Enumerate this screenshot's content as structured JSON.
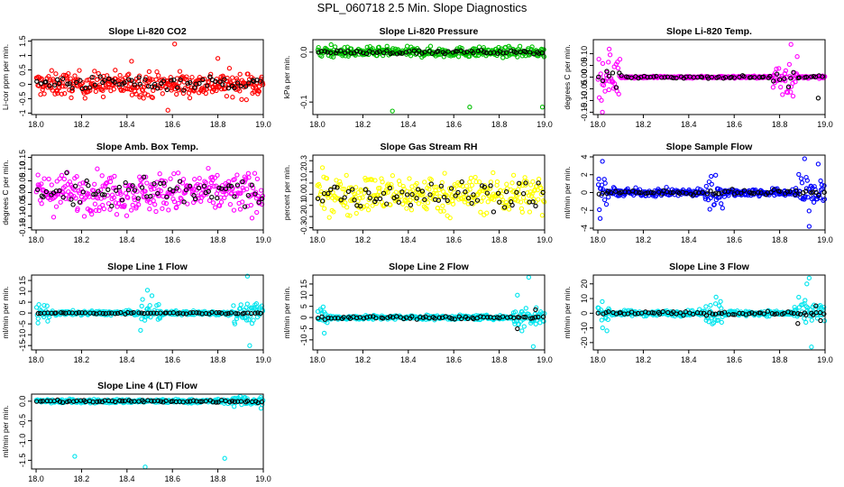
{
  "title": "SPL_060718  2.5 Min. Slope Diagnostics",
  "chart_data": [
    {
      "type": "scatter",
      "title": "Slope Li-820 CO2",
      "ylabel": "Li-cor ppm per min.",
      "color": "#ff0000",
      "xlim": [
        17.98,
        19.0
      ],
      "xticks": [
        18.0,
        18.2,
        18.4,
        18.6,
        18.8,
        19.0
      ],
      "ylim": [
        -1.05,
        1.55
      ],
      "yticks": [
        -1.0,
        -0.5,
        0.0,
        0.5,
        1.0,
        1.5
      ],
      "ytick_labels": [
        "-1",
        "-0.5",
        "0",
        "0.5",
        "1",
        "1.5"
      ],
      "series": [
        {
          "name": "main",
          "color": "#ff0000",
          "base": 0.0,
          "spread": 0.35,
          "outliers": [
            [
              18.32,
              0.15
            ],
            [
              18.61,
              1.4
            ],
            [
              18.58,
              -0.9
            ],
            [
              18.42,
              0.8
            ],
            [
              18.8,
              0.9
            ]
          ]
        },
        {
          "name": "black",
          "color": "#000000",
          "base": 0.05,
          "spread": 0.2,
          "outliers": []
        }
      ]
    },
    {
      "type": "scatter",
      "title": "Slope Li-820 Pressure",
      "ylabel": "kPa per min.",
      "color": "#00c000",
      "xlim": [
        17.98,
        19.0
      ],
      "xticks": [
        18.0,
        18.2,
        18.4,
        18.6,
        18.8,
        19.0
      ],
      "ylim": [
        -0.125,
        0.025
      ],
      "yticks": [
        -0.1,
        0.0
      ],
      "ytick_labels": [
        "-0.1",
        "0.0"
      ],
      "series": [
        {
          "name": "main",
          "color": "#00c000",
          "base": 0.0,
          "spread": 0.008,
          "outliers": [
            [
              18.33,
              -0.118
            ],
            [
              18.67,
              -0.11
            ],
            [
              18.99,
              -0.11
            ],
            [
              18.06,
              0.015
            ]
          ]
        },
        {
          "name": "black",
          "color": "#000000",
          "base": 0.0,
          "spread": 0.003,
          "outliers": []
        }
      ]
    },
    {
      "type": "scatter",
      "title": "Slope Li-820 Temp.",
      "ylabel": "degrees C per min.",
      "color": "#ff00ff",
      "xlim": [
        17.98,
        19.0
      ],
      "xticks": [
        18.0,
        18.2,
        18.4,
        18.6,
        18.8,
        19.0
      ],
      "ylim": [
        -0.16,
        0.16
      ],
      "yticks": [
        -0.15,
        -0.1,
        -0.05,
        0.0,
        0.05,
        0.1
      ],
      "ytick_labels": [
        "-0.15",
        "-0.10",
        "-0.05",
        "0.00",
        "0.05",
        "0.10"
      ],
      "series": [
        {
          "name": "main",
          "color": "#ff00ff",
          "base": 0.0,
          "spread": 0.004,
          "burstSpread": 0.07,
          "bursts": [
            [
              17.99,
              18.1
            ],
            [
              18.77,
              18.88
            ]
          ],
          "outliers": [
            [
              18.05,
              0.12
            ],
            [
              18.85,
              0.14
            ],
            [
              18.02,
              -0.15
            ]
          ]
        },
        {
          "name": "black",
          "color": "#000000",
          "base": 0.0,
          "spread": 0.004,
          "burstSpread": 0.04,
          "bursts": [
            [
              17.99,
              18.1
            ],
            [
              18.77,
              18.88
            ]
          ],
          "outliers": [
            [
              18.97,
              -0.09
            ]
          ]
        }
      ]
    },
    {
      "type": "scatter",
      "title": "Slope Amb. Box Temp.",
      "ylabel": "degrees C per min.",
      "color": "#ff00ff",
      "xlim": [
        17.98,
        19.0
      ],
      "xticks": [
        18.0,
        18.2,
        18.4,
        18.6,
        18.8,
        19.0
      ],
      "ylim": [
        -0.16,
        0.16
      ],
      "yticks": [
        -0.15,
        -0.1,
        -0.05,
        0.0,
        0.05,
        0.1,
        0.15
      ],
      "ytick_labels": [
        "-0.15",
        "-0.10",
        "-0.05",
        "0.00",
        "0.05",
        "0.10",
        "0.15"
      ],
      "series": [
        {
          "name": "main",
          "color": "#ff00ff",
          "base": 0.0,
          "spread": 0.07,
          "outliers": []
        },
        {
          "name": "black",
          "color": "#000000",
          "base": 0.0,
          "spread": 0.05,
          "outliers": []
        }
      ]
    },
    {
      "type": "scatter",
      "title": "Slope Gas Stream RH",
      "ylabel": "percent per min.",
      "color": "#ffff00",
      "xlim": [
        17.98,
        19.0
      ],
      "xticks": [
        18.0,
        18.2,
        18.4,
        18.6,
        18.8,
        19.0
      ],
      "ylim": [
        -0.32,
        0.35
      ],
      "yticks": [
        -0.3,
        -0.2,
        -0.1,
        0.0,
        0.1,
        0.2,
        0.3
      ],
      "ytick_labels": [
        "-0.3",
        "-0.2",
        "-0.1",
        "0.0",
        "0.1",
        "0.2",
        "0.3"
      ],
      "series": [
        {
          "name": "main",
          "color": "#ffff00",
          "base": 0.0,
          "spread": 0.14,
          "outliers": []
        },
        {
          "name": "black",
          "color": "#000000",
          "base": 0.0,
          "spread": 0.1,
          "outliers": []
        }
      ]
    },
    {
      "type": "scatter",
      "title": "Slope Sample Flow",
      "ylabel": "ml/min per min.",
      "color": "#0000ff",
      "xlim": [
        17.98,
        19.0
      ],
      "xticks": [
        18.0,
        18.2,
        18.4,
        18.6,
        18.8,
        19.0
      ],
      "ylim": [
        -4.2,
        4.2
      ],
      "yticks": [
        -4.0,
        -2.0,
        0.0,
        2.0,
        4.0
      ],
      "ytick_labels": [
        "-4",
        "-2",
        "0",
        "2",
        "4"
      ],
      "series": [
        {
          "name": "main",
          "color": "#0000ff",
          "base": 0.0,
          "spread": 0.35,
          "burstSpread": 1.5,
          "bursts": [
            [
              17.99,
              18.05
            ],
            [
              18.47,
              18.55
            ],
            [
              18.87,
              19.0
            ]
          ],
          "outliers": [
            [
              18.02,
              3.5
            ],
            [
              18.91,
              3.8
            ],
            [
              18.93,
              -3.8
            ],
            [
              18.97,
              3.2
            ],
            [
              18.01,
              -2.9
            ]
          ]
        },
        {
          "name": "black",
          "color": "#000000",
          "base": 0.0,
          "spread": 0.25,
          "outliers": []
        }
      ]
    },
    {
      "type": "scatter",
      "title": "Slope Line 1 Flow",
      "ylabel": "ml/min per min.",
      "color": "#00e5ee",
      "xlim": [
        17.98,
        19.0
      ],
      "xticks": [
        18.0,
        18.2,
        18.4,
        18.6,
        18.8,
        19.0
      ],
      "ylim": [
        -17,
        17.5
      ],
      "yticks": [
        -15,
        -10,
        -5,
        0,
        5,
        10,
        15
      ],
      "ytick_labels": [
        "-15",
        "-10",
        "-5",
        "0",
        "5",
        "10",
        "15"
      ],
      "series": [
        {
          "name": "main",
          "color": "#00e5ee",
          "base": 0.0,
          "spread": 0.8,
          "burstSpread": 3.5,
          "bursts": [
            [
              17.99,
              18.06
            ],
            [
              18.46,
              18.55
            ],
            [
              18.86,
              19.0
            ]
          ],
          "outliers": [
            [
              18.46,
              -8.0
            ],
            [
              18.49,
              10.5
            ],
            [
              18.51,
              8.0
            ],
            [
              18.94,
              -15.0
            ],
            [
              18.93,
              17.0
            ]
          ]
        },
        {
          "name": "black",
          "color": "#000000",
          "base": 0.0,
          "spread": 0.3,
          "outliers": []
        }
      ]
    },
    {
      "type": "scatter",
      "title": "Slope Line 2 Flow",
      "ylabel": "ml/min per min.",
      "color": "#00e5ee",
      "xlim": [
        17.98,
        19.0
      ],
      "xticks": [
        18.0,
        18.2,
        18.4,
        18.6,
        18.8,
        19.0
      ],
      "ylim": [
        -14.5,
        19.0
      ],
      "yticks": [
        -10,
        -5,
        0,
        5,
        10,
        15
      ],
      "ytick_labels": [
        "-10",
        "-5",
        "0",
        "5",
        "10",
        "15"
      ],
      "series": [
        {
          "name": "main",
          "color": "#00e5ee",
          "base": 0.0,
          "spread": 0.8,
          "burstSpread": 3.5,
          "bursts": [
            [
              17.99,
              18.05
            ],
            [
              18.86,
              19.0
            ]
          ],
          "outliers": [
            [
              18.03,
              -7.0
            ],
            [
              18.88,
              10.0
            ],
            [
              18.93,
              18.0
            ],
            [
              18.95,
              -13.0
            ],
            [
              18.9,
              -6.0
            ]
          ]
        },
        {
          "name": "black",
          "color": "#000000",
          "base": 0.0,
          "spread": 0.7,
          "outliers": [
            [
              18.88,
              -5.0
            ],
            [
              18.96,
              3.5
            ]
          ]
        }
      ]
    },
    {
      "type": "scatter",
      "title": "Slope Line 3 Flow",
      "ylabel": "ml/min per min.",
      "color": "#00e5ee",
      "xlim": [
        17.98,
        19.0
      ],
      "xticks": [
        18.0,
        18.2,
        18.4,
        18.6,
        18.8,
        19.0
      ],
      "ylim": [
        -25,
        26
      ],
      "yticks": [
        -20,
        -10,
        0,
        10,
        20
      ],
      "ytick_labels": [
        "-20",
        "-10",
        "0",
        "10",
        "20"
      ],
      "series": [
        {
          "name": "main",
          "color": "#00e5ee",
          "base": 0.0,
          "spread": 1.5,
          "burstSpread": 6.0,
          "bursts": [
            [
              17.99,
              18.05
            ],
            [
              18.47,
              18.55
            ],
            [
              18.86,
              19.0
            ]
          ],
          "outliers": [
            [
              18.04,
              -12.0
            ],
            [
              18.52,
              11.0
            ],
            [
              18.54,
              8.0
            ],
            [
              18.93,
              24.0
            ],
            [
              18.94,
              -23.0
            ],
            [
              18.92,
              20.0
            ]
          ]
        },
        {
          "name": "black",
          "color": "#000000",
          "base": 0.0,
          "spread": 1.0,
          "outliers": [
            [
              18.88,
              -7.0
            ],
            [
              18.98,
              -5.0
            ],
            [
              18.96,
              5.0
            ]
          ]
        }
      ]
    },
    {
      "type": "scatter",
      "title": "Slope Line 4 (LT) Flow",
      "ylabel": "ml/min per min.",
      "color": "#00e5ee",
      "xlim": [
        17.98,
        19.0
      ],
      "xticks": [
        18.0,
        18.2,
        18.4,
        18.6,
        18.8,
        19.0
      ],
      "ylim": [
        -1.72,
        0.18
      ],
      "yticks": [
        -1.5,
        -1.0,
        -0.5,
        0.0
      ],
      "ytick_labels": [
        "-1.5",
        "-1.0",
        "-0.5",
        "0.0"
      ],
      "series": [
        {
          "name": "main",
          "color": "#00e5ee",
          "base": 0.0,
          "spread": 0.04,
          "burstSpread": 0.1,
          "bursts": [
            [
              18.86,
              19.0
            ]
          ],
          "outliers": [
            [
              18.17,
              -1.4
            ],
            [
              18.83,
              -1.45
            ],
            [
              18.48,
              -1.67
            ],
            [
              18.99,
              -0.18
            ]
          ]
        },
        {
          "name": "black",
          "color": "#000000",
          "base": 0.0,
          "spread": 0.03,
          "outliers": []
        }
      ]
    }
  ]
}
